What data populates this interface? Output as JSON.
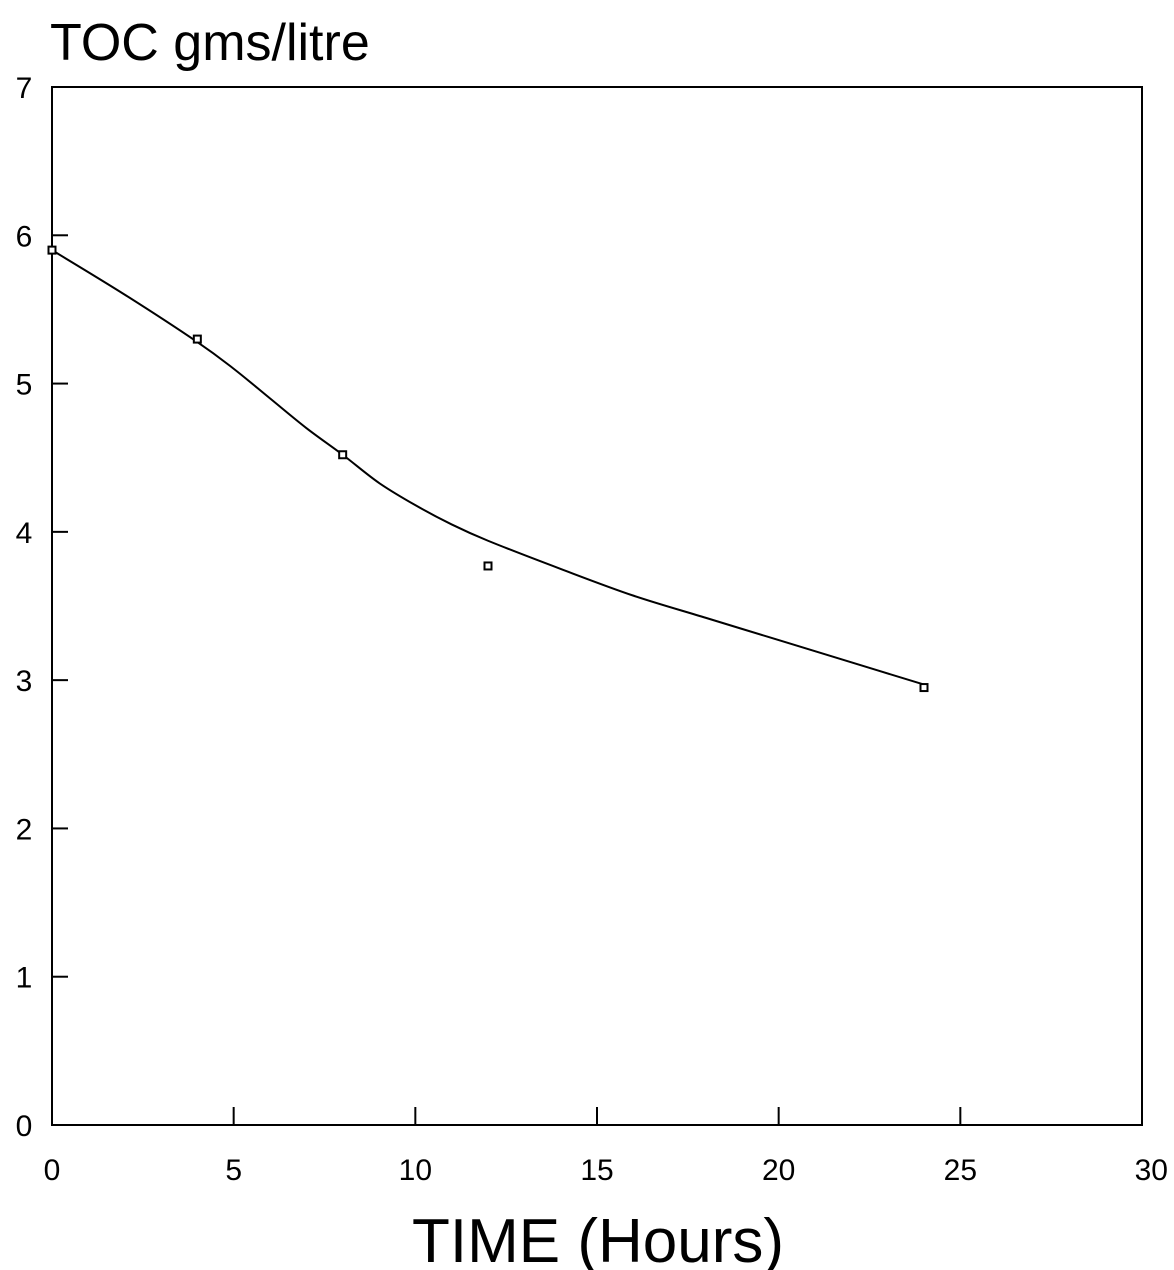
{
  "chart_data": {
    "type": "line",
    "ylabel": "TOC gms/litre",
    "xlabel": "TIME (Hours)",
    "xlim": [
      0,
      30
    ],
    "ylim": [
      0,
      7
    ],
    "x_ticks": [
      "0",
      "5",
      "10",
      "15",
      "20",
      "25",
      "30"
    ],
    "y_ticks": [
      "0",
      "1",
      "2",
      "3",
      "4",
      "5",
      "6",
      "7"
    ],
    "grid": false,
    "series": [
      {
        "points": [
          {
            "x": 0,
            "y": 5.9
          },
          {
            "x": 4,
            "y": 5.3
          },
          {
            "x": 8,
            "y": 4.52
          },
          {
            "x": 12,
            "y": 3.77
          },
          {
            "x": 24,
            "y": 2.95
          }
        ]
      }
    ],
    "fit_curve": [
      {
        "x": 0,
        "y": 5.9
      },
      {
        "x": 2,
        "y": 5.6
      },
      {
        "x": 4,
        "y": 5.28
      },
      {
        "x": 5,
        "y": 5.1
      },
      {
        "x": 6,
        "y": 4.9
      },
      {
        "x": 7,
        "y": 4.7
      },
      {
        "x": 8,
        "y": 4.52
      },
      {
        "x": 9,
        "y": 4.33
      },
      {
        "x": 10,
        "y": 4.18
      },
      {
        "x": 11,
        "y": 4.05
      },
      {
        "x": 12,
        "y": 3.94
      },
      {
        "x": 14,
        "y": 3.75
      },
      {
        "x": 16,
        "y": 3.57
      },
      {
        "x": 18,
        "y": 3.42
      },
      {
        "x": 20,
        "y": 3.27
      },
      {
        "x": 22,
        "y": 3.12
      },
      {
        "x": 24,
        "y": 2.97
      }
    ]
  }
}
